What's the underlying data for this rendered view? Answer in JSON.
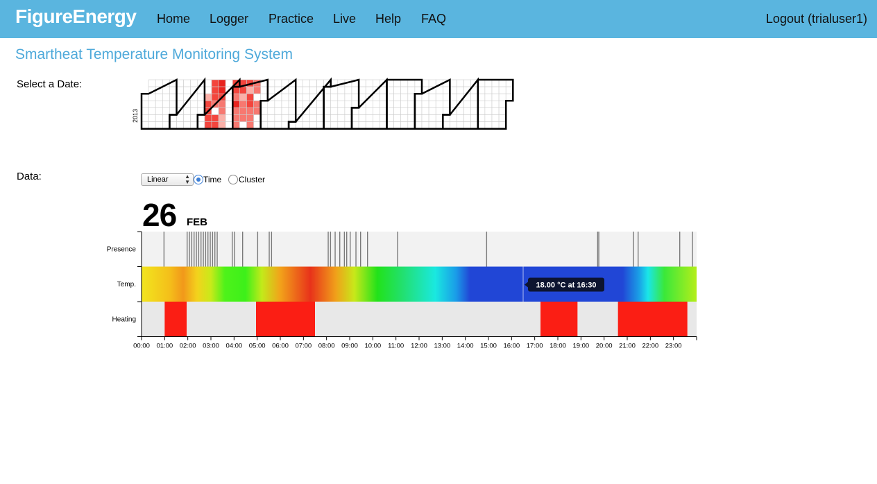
{
  "nav": {
    "brand": "FigureEnergy",
    "links": [
      "Home",
      "Logger",
      "Practice",
      "Live",
      "Help",
      "FAQ"
    ],
    "logout": "Logout (trialuser1)"
  },
  "page_title": "Smartheat Temperature Monitoring System",
  "date_label": "Select a Date:",
  "data_label": "Data:",
  "calendar": {
    "year_label": "2013",
    "heat_colors": [
      "#fde0dc",
      "#fbb0a8",
      "#f77870",
      "#f3453d",
      "#e8231e"
    ]
  },
  "controls": {
    "scale_select": "Linear",
    "mode_options": [
      {
        "label": "Time",
        "selected": true
      },
      {
        "label": "Cluster",
        "selected": false
      }
    ]
  },
  "selected_date": {
    "day": "26",
    "month": "FEB"
  },
  "chart_data": {
    "type": "heatmap",
    "rows": [
      "Presence",
      "Temp.",
      "Heating"
    ],
    "x_ticks": [
      "00:00",
      "01:00",
      "02:00",
      "03:00",
      "04:00",
      "05:00",
      "06:00",
      "07:00",
      "08:00",
      "09:00",
      "10:00",
      "11:00",
      "12:00",
      "13:00",
      "14:00",
      "15:00",
      "16:00",
      "17:00",
      "18:00",
      "19:00",
      "20:00",
      "21:00",
      "22:00",
      "23:00"
    ],
    "x_range_hours": [
      0,
      24
    ],
    "presence_marks_hours": [
      0.95,
      1.95,
      2.05,
      2.15,
      2.25,
      2.35,
      2.45,
      2.55,
      2.65,
      2.75,
      2.85,
      2.95,
      3.05,
      3.15,
      3.25,
      3.9,
      4.0,
      4.35,
      5.0,
      5.5,
      5.6,
      8.05,
      8.15,
      8.35,
      8.55,
      8.75,
      8.85,
      9.0,
      9.25,
      9.45,
      9.75,
      11.05,
      14.9,
      19.7,
      19.75,
      21.25,
      21.45,
      23.25,
      23.8
    ],
    "temperature_gradient": [
      {
        "hour": 0.0,
        "color": "#f2e51e"
      },
      {
        "hour": 1.2,
        "color": "#f4c01a"
      },
      {
        "hour": 1.8,
        "color": "#f2981a"
      },
      {
        "hour": 2.4,
        "color": "#f3d21c"
      },
      {
        "hour": 3.0,
        "color": "#c8ea1a"
      },
      {
        "hour": 3.6,
        "color": "#4ef21a"
      },
      {
        "hour": 4.5,
        "color": "#3df01a"
      },
      {
        "hour": 5.2,
        "color": "#c2ea1a"
      },
      {
        "hour": 6.0,
        "color": "#f2a21a"
      },
      {
        "hour": 7.3,
        "color": "#e8321a"
      },
      {
        "hour": 8.4,
        "color": "#f0a01a"
      },
      {
        "hour": 9.2,
        "color": "#c8e81a"
      },
      {
        "hour": 10.2,
        "color": "#22e21a"
      },
      {
        "hour": 11.3,
        "color": "#22e070"
      },
      {
        "hour": 12.7,
        "color": "#1ae8e0"
      },
      {
        "hour": 13.6,
        "color": "#1a9ce8"
      },
      {
        "hour": 14.2,
        "color": "#2146d6"
      },
      {
        "hour": 20.8,
        "color": "#2146d6"
      },
      {
        "hour": 21.5,
        "color": "#1a9ee6"
      },
      {
        "hour": 21.9,
        "color": "#1ae6e8"
      },
      {
        "hour": 22.6,
        "color": "#3ae83a"
      },
      {
        "hour": 24.0,
        "color": "#b4ee1a"
      }
    ],
    "heating_on_intervals_hours": [
      [
        1.0,
        1.95
      ],
      [
        4.95,
        7.5
      ],
      [
        17.25,
        18.85
      ],
      [
        20.6,
        23.6
      ]
    ],
    "colors": {
      "heating_on": "#fb1e14",
      "heating_off": "#e8e8e8",
      "presence_mark": "#7a7a7a",
      "presence_bg": "#f2f2f2"
    },
    "tooltip": {
      "text": "18.00 °C at 16:30",
      "hour": 16.5
    }
  }
}
